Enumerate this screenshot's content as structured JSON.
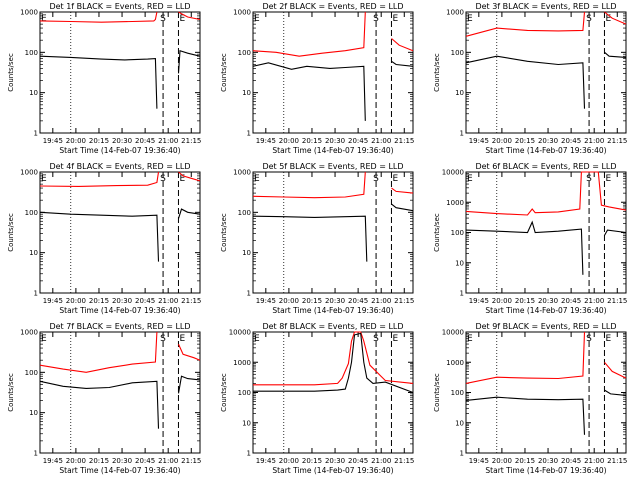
{
  "chart_data": {
    "type": "line",
    "scale": "log",
    "ylabel": "Counts/sec",
    "xlabel": "Start Time (14-Feb-07 19:36:40)",
    "xticks": [
      "19:45",
      "20:00",
      "20:15",
      "20:30",
      "20:45",
      "21:00",
      "21:15"
    ],
    "xlim_min": [
      0,
      104
    ],
    "colors": {
      "events": "#000000",
      "lld": "#ff0000"
    },
    "panels": [
      {
        "title": "Det 1f BLACK = Events, RED = LLD",
        "ylim": [
          1,
          1000
        ],
        "yticks": [
          "1",
          "10",
          "100",
          "1000"
        ],
        "events": [
          [
            0,
            80
          ],
          [
            20,
            75
          ],
          [
            40,
            68
          ],
          [
            55,
            65
          ],
          [
            70,
            68
          ],
          [
            75,
            70
          ],
          [
            76,
            4
          ],
          [
            78,
            null
          ],
          [
            90,
            30
          ],
          [
            91,
            110
          ],
          [
            96,
            95
          ],
          [
            104,
            80
          ]
        ],
        "lld": [
          [
            0,
            600
          ],
          [
            20,
            580
          ],
          [
            40,
            560
          ],
          [
            60,
            580
          ],
          [
            74,
            600
          ],
          [
            75,
            650
          ],
          [
            76,
            1000
          ],
          [
            78,
            null
          ],
          [
            90,
            1000
          ],
          [
            92,
            900
          ],
          [
            96,
            750
          ],
          [
            104,
            650
          ]
        ]
      },
      {
        "title": "Det 2f BLACK = Events, RED = LLD",
        "ylim": [
          1,
          1000
        ],
        "yticks": [
          "1",
          "10",
          "100",
          "1000"
        ],
        "events": [
          [
            0,
            45
          ],
          [
            10,
            55
          ],
          [
            25,
            38
          ],
          [
            35,
            45
          ],
          [
            50,
            40
          ],
          [
            60,
            42
          ],
          [
            72,
            45
          ],
          [
            73,
            2
          ],
          [
            78,
            null
          ],
          [
            90,
            60
          ],
          [
            93,
            50
          ],
          [
            104,
            45
          ]
        ],
        "lld": [
          [
            0,
            110
          ],
          [
            15,
            100
          ],
          [
            30,
            80
          ],
          [
            45,
            95
          ],
          [
            60,
            110
          ],
          [
            72,
            130
          ],
          [
            73,
            1000
          ],
          [
            78,
            null
          ],
          [
            90,
            220
          ],
          [
            95,
            150
          ],
          [
            104,
            110
          ]
        ]
      },
      {
        "title": "Det 3f BLACK = Events, RED = LLD",
        "ylim": [
          1,
          1000
        ],
        "yticks": [
          "1",
          "10",
          "100",
          "1000"
        ],
        "events": [
          [
            0,
            55
          ],
          [
            20,
            80
          ],
          [
            40,
            60
          ],
          [
            60,
            50
          ],
          [
            76,
            55
          ],
          [
            77,
            4
          ],
          [
            80,
            null
          ],
          [
            90,
            100
          ],
          [
            93,
            80
          ],
          [
            104,
            75
          ]
        ],
        "lld": [
          [
            0,
            250
          ],
          [
            20,
            400
          ],
          [
            40,
            350
          ],
          [
            60,
            340
          ],
          [
            76,
            350
          ],
          [
            77,
            1000
          ],
          [
            80,
            null
          ],
          [
            90,
            1000
          ],
          [
            95,
            700
          ],
          [
            104,
            500
          ]
        ]
      },
      {
        "title": "Det 4f BLACK = Events, RED = LLD",
        "ylim": [
          1,
          1000
        ],
        "yticks": [
          "1",
          "10",
          "100",
          "1000"
        ],
        "events": [
          [
            0,
            100
          ],
          [
            20,
            90
          ],
          [
            40,
            85
          ],
          [
            60,
            80
          ],
          [
            76,
            85
          ],
          [
            77,
            6
          ],
          [
            78,
            null
          ],
          [
            90,
            70
          ],
          [
            92,
            120
          ],
          [
            96,
            100
          ],
          [
            104,
            90
          ]
        ],
        "lld": [
          [
            0,
            450
          ],
          [
            25,
            440
          ],
          [
            50,
            460
          ],
          [
            70,
            470
          ],
          [
            76,
            550
          ],
          [
            77,
            1000
          ],
          [
            78,
            null
          ],
          [
            90,
            1000
          ],
          [
            93,
            800
          ],
          [
            98,
            700
          ],
          [
            104,
            600
          ]
        ]
      },
      {
        "title": "Det 5f BLACK = Events, RED = LLD",
        "ylim": [
          1,
          1000
        ],
        "yticks": [
          "1",
          "10",
          "100",
          "1000"
        ],
        "events": [
          [
            0,
            80
          ],
          [
            20,
            78
          ],
          [
            40,
            75
          ],
          [
            60,
            78
          ],
          [
            73,
            80
          ],
          [
            74,
            6
          ],
          [
            78,
            null
          ],
          [
            90,
            160
          ],
          [
            93,
            130
          ],
          [
            104,
            110
          ]
        ],
        "lld": [
          [
            0,
            250
          ],
          [
            20,
            240
          ],
          [
            40,
            230
          ],
          [
            60,
            240
          ],
          [
            72,
            280
          ],
          [
            73,
            1000
          ],
          [
            78,
            null
          ],
          [
            90,
            400
          ],
          [
            93,
            330
          ],
          [
            104,
            300
          ]
        ]
      },
      {
        "title": "Det 6f BLACK = Events, RED = LLD",
        "ylim": [
          1,
          10000
        ],
        "yticks": [
          "1",
          "10",
          "100",
          "1000",
          "10000"
        ],
        "events": [
          [
            0,
            120
          ],
          [
            20,
            110
          ],
          [
            40,
            100
          ],
          [
            43,
            220
          ],
          [
            45,
            100
          ],
          [
            60,
            110
          ],
          [
            75,
            130
          ],
          [
            76,
            4
          ],
          [
            78,
            null
          ],
          [
            90,
            80
          ],
          [
            92,
            120
          ],
          [
            104,
            100
          ]
        ],
        "lld": [
          [
            0,
            500
          ],
          [
            20,
            420
          ],
          [
            40,
            380
          ],
          [
            43,
            600
          ],
          [
            45,
            450
          ],
          [
            60,
            480
          ],
          [
            74,
            600
          ],
          [
            75,
            10000
          ],
          [
            86,
            10000
          ],
          [
            88,
            800
          ],
          [
            93,
            700
          ],
          [
            104,
            550
          ]
        ]
      },
      {
        "title": "Det 7f BLACK = Events, RED = LLD",
        "ylim": [
          1,
          1000
        ],
        "yticks": [
          "1",
          "10",
          "100",
          "1000"
        ],
        "events": [
          [
            0,
            60
          ],
          [
            15,
            45
          ],
          [
            30,
            40
          ],
          [
            45,
            42
          ],
          [
            60,
            55
          ],
          [
            76,
            60
          ],
          [
            77,
            4
          ],
          [
            78,
            null
          ],
          [
            90,
            30
          ],
          [
            92,
            80
          ],
          [
            96,
            70
          ],
          [
            104,
            65
          ]
        ],
        "lld": [
          [
            0,
            150
          ],
          [
            15,
            120
          ],
          [
            30,
            100
          ],
          [
            45,
            130
          ],
          [
            60,
            160
          ],
          [
            75,
            180
          ],
          [
            76,
            1000
          ],
          [
            78,
            null
          ],
          [
            90,
            500
          ],
          [
            93,
            280
          ],
          [
            100,
            230
          ],
          [
            104,
            200
          ]
        ]
      },
      {
        "title": "Det 8f BLACK = Events, RED = LLD",
        "ylim": [
          1,
          10000
        ],
        "yticks": [
          "1",
          "10",
          "100",
          "1000",
          "10000"
        ],
        "events": [
          [
            0,
            110
          ],
          [
            20,
            110
          ],
          [
            40,
            110
          ],
          [
            55,
            120
          ],
          [
            60,
            130
          ],
          [
            62,
            300
          ],
          [
            64,
            1000
          ],
          [
            66,
            8000
          ],
          [
            70,
            9000
          ],
          [
            72,
            1000
          ],
          [
            74,
            300
          ],
          [
            78,
            200
          ],
          [
            86,
            220
          ],
          [
            104,
            100
          ]
        ],
        "lld": [
          [
            0,
            180
          ],
          [
            20,
            180
          ],
          [
            40,
            180
          ],
          [
            55,
            200
          ],
          [
            58,
            300
          ],
          [
            62,
            900
          ],
          [
            64,
            5000
          ],
          [
            66,
            10000
          ],
          [
            70,
            10000
          ],
          [
            72,
            5000
          ],
          [
            76,
            800
          ],
          [
            86,
            250
          ],
          [
            104,
            200
          ]
        ]
      },
      {
        "title": "Det 9f BLACK = Events, RED = LLD",
        "ylim": [
          1,
          10000
        ],
        "yticks": [
          "1",
          "10",
          "100",
          "1000",
          "10000"
        ],
        "events": [
          [
            0,
            55
          ],
          [
            20,
            70
          ],
          [
            40,
            60
          ],
          [
            60,
            58
          ],
          [
            76,
            60
          ],
          [
            77,
            4
          ],
          [
            80,
            null
          ],
          [
            90,
            120
          ],
          [
            94,
            90
          ],
          [
            104,
            80
          ]
        ],
        "lld": [
          [
            0,
            200
          ],
          [
            20,
            320
          ],
          [
            40,
            300
          ],
          [
            60,
            290
          ],
          [
            76,
            350
          ],
          [
            77,
            10000
          ],
          [
            80,
            null
          ],
          [
            90,
            1000
          ],
          [
            95,
            500
          ],
          [
            104,
            300
          ]
        ]
      }
    ]
  }
}
